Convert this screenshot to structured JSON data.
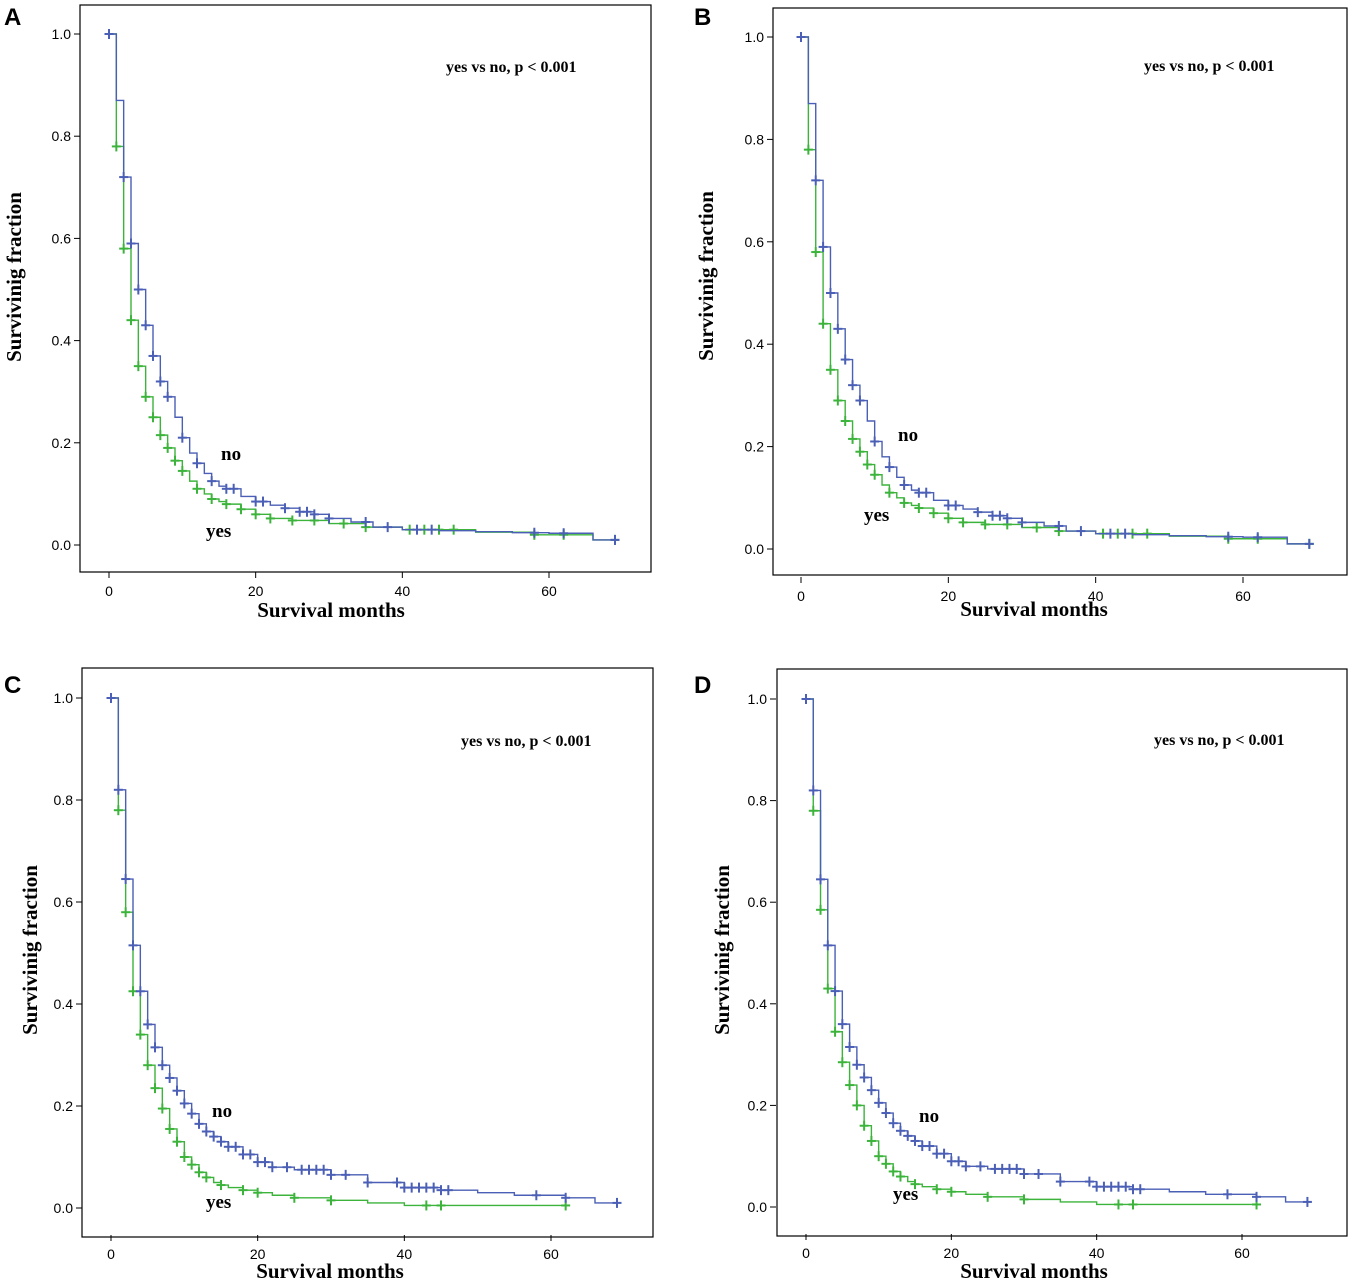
{
  "colors": {
    "no": "#4a5fb5",
    "yes": "#3cb43c"
  },
  "chart_data": [
    {
      "type": "line",
      "panel": "A",
      "xlabel": "Survival months",
      "ylabel": "Survivinig fraction",
      "annotation": "yes vs no, p < 0.001",
      "x_ticks": [
        "0",
        "20",
        "40",
        "60"
      ],
      "y_ticks": [
        "0.0",
        "0.2",
        "0.4",
        "0.6",
        "0.8",
        "1.0"
      ],
      "xlim": [
        -4,
        74
      ],
      "ylim": [
        -0.05,
        1.06
      ],
      "series": [
        {
          "name": "no",
          "label": "no",
          "x": [
            0,
            1,
            2,
            3,
            4,
            5,
            6,
            7,
            8,
            9,
            10,
            11,
            12,
            13,
            14,
            15,
            16,
            18,
            20,
            22,
            24,
            26,
            28,
            30,
            33,
            36,
            40,
            45,
            50,
            55,
            60,
            66
          ],
          "y": [
            1.0,
            0.87,
            0.72,
            0.59,
            0.5,
            0.43,
            0.37,
            0.32,
            0.29,
            0.25,
            0.21,
            0.18,
            0.16,
            0.14,
            0.125,
            0.115,
            0.11,
            0.095,
            0.085,
            0.078,
            0.072,
            0.065,
            0.06,
            0.052,
            0.045,
            0.035,
            0.03,
            0.028,
            0.026,
            0.024,
            0.023,
            0.01
          ],
          "censor_x": [
            0,
            2,
            3,
            4,
            5,
            6,
            7,
            8,
            10,
            12,
            14,
            16,
            17,
            20,
            21,
            24,
            26,
            27,
            28,
            30,
            35,
            38,
            42,
            44,
            58,
            62,
            69
          ]
        },
        {
          "name": "yes",
          "label": "yes",
          "x": [
            0,
            1,
            2,
            3,
            4,
            5,
            6,
            7,
            8,
            9,
            10,
            11,
            12,
            13,
            14,
            15,
            16,
            18,
            20,
            22,
            25,
            30,
            35,
            40,
            50,
            58,
            66
          ],
          "y": [
            1.0,
            0.78,
            0.58,
            0.44,
            0.35,
            0.29,
            0.25,
            0.215,
            0.19,
            0.165,
            0.145,
            0.125,
            0.11,
            0.1,
            0.09,
            0.085,
            0.08,
            0.07,
            0.06,
            0.052,
            0.048,
            0.042,
            0.035,
            0.03,
            0.025,
            0.02,
            0.01
          ],
          "censor_x": [
            0,
            1,
            2,
            3,
            4,
            5,
            6,
            7,
            8,
            9,
            10,
            12,
            14,
            16,
            18,
            20,
            22,
            25,
            28,
            32,
            35,
            41,
            43,
            45,
            47,
            58,
            62,
            69
          ]
        }
      ]
    },
    {
      "type": "line",
      "panel": "B",
      "xlabel": "Survival months",
      "ylabel": "Survivinig fraction",
      "annotation": "yes vs no, p < 0.001",
      "x_ticks": [
        "0",
        "20",
        "40",
        "60"
      ],
      "y_ticks": [
        "0.0",
        "0.2",
        "0.4",
        "0.6",
        "0.8",
        "1.0"
      ],
      "xlim": [
        -4,
        74
      ],
      "ylim": [
        -0.05,
        1.06
      ],
      "series": [
        {
          "name": "no",
          "label": "no",
          "x": [
            0,
            1,
            2,
            3,
            4,
            5,
            6,
            7,
            8,
            9,
            10,
            11,
            12,
            13,
            14,
            15,
            16,
            18,
            20,
            22,
            24,
            26,
            28,
            30,
            33,
            36,
            40,
            45,
            50,
            55,
            60,
            66
          ],
          "y": [
            1.0,
            0.87,
            0.72,
            0.59,
            0.5,
            0.43,
            0.37,
            0.32,
            0.29,
            0.25,
            0.21,
            0.18,
            0.16,
            0.14,
            0.125,
            0.115,
            0.11,
            0.095,
            0.085,
            0.078,
            0.072,
            0.065,
            0.06,
            0.052,
            0.045,
            0.035,
            0.03,
            0.028,
            0.026,
            0.024,
            0.023,
            0.01
          ],
          "censor_x": [
            0,
            2,
            3,
            4,
            5,
            6,
            7,
            8,
            10,
            12,
            14,
            16,
            17,
            20,
            21,
            24,
            26,
            27,
            28,
            30,
            35,
            38,
            42,
            44,
            58,
            62,
            69
          ]
        },
        {
          "name": "yes",
          "label": "yes",
          "x": [
            0,
            1,
            2,
            3,
            4,
            5,
            6,
            7,
            8,
            9,
            10,
            11,
            12,
            13,
            14,
            15,
            16,
            18,
            20,
            22,
            25,
            30,
            35,
            40,
            50,
            58,
            66
          ],
          "y": [
            1.0,
            0.78,
            0.58,
            0.44,
            0.35,
            0.29,
            0.25,
            0.215,
            0.19,
            0.165,
            0.145,
            0.125,
            0.11,
            0.1,
            0.09,
            0.085,
            0.08,
            0.07,
            0.06,
            0.052,
            0.048,
            0.042,
            0.035,
            0.03,
            0.025,
            0.02,
            0.01
          ],
          "censor_x": [
            0,
            1,
            2,
            3,
            4,
            5,
            6,
            7,
            8,
            9,
            10,
            12,
            14,
            16,
            18,
            20,
            22,
            25,
            28,
            32,
            35,
            41,
            43,
            45,
            47,
            58,
            62,
            69
          ]
        }
      ]
    },
    {
      "type": "line",
      "panel": "C",
      "xlabel": "Survival months",
      "ylabel": "Survivinig fraction",
      "annotation": "yes vs no, p < 0.001",
      "x_ticks": [
        "0",
        "20",
        "40",
        "60"
      ],
      "y_ticks": [
        "0.0",
        "0.2",
        "0.4",
        "0.6",
        "0.8",
        "1.0"
      ],
      "xlim": [
        -4,
        74
      ],
      "ylim": [
        -0.05,
        1.06
      ],
      "series": [
        {
          "name": "no",
          "label": "no",
          "x": [
            0,
            1,
            2,
            3,
            4,
            5,
            6,
            7,
            8,
            9,
            10,
            11,
            12,
            13,
            14,
            15,
            16,
            18,
            20,
            22,
            25,
            30,
            35,
            40,
            45,
            50,
            55,
            62,
            66
          ],
          "y": [
            1.0,
            0.82,
            0.645,
            0.515,
            0.425,
            0.36,
            0.315,
            0.28,
            0.255,
            0.23,
            0.205,
            0.185,
            0.165,
            0.15,
            0.14,
            0.13,
            0.12,
            0.105,
            0.09,
            0.08,
            0.075,
            0.065,
            0.05,
            0.04,
            0.035,
            0.03,
            0.025,
            0.02,
            0.01
          ],
          "censor_x": [
            0,
            1,
            2,
            3,
            4,
            5,
            6,
            7,
            8,
            9,
            10,
            11,
            12,
            13,
            14,
            15,
            16,
            17,
            18,
            19,
            20,
            21,
            22,
            24,
            26,
            27,
            28,
            29,
            30,
            32,
            35,
            39,
            40,
            41,
            42,
            43,
            44,
            45,
            46,
            58,
            62,
            69
          ]
        },
        {
          "name": "yes",
          "label": "yes",
          "x": [
            0,
            1,
            2,
            3,
            4,
            5,
            6,
            7,
            8,
            9,
            10,
            11,
            12,
            13,
            14,
            15,
            16,
            18,
            20,
            22,
            25,
            30,
            35,
            40,
            45,
            62
          ],
          "y": [
            1.0,
            0.78,
            0.58,
            0.425,
            0.34,
            0.28,
            0.235,
            0.195,
            0.155,
            0.13,
            0.1,
            0.085,
            0.07,
            0.06,
            0.05,
            0.045,
            0.04,
            0.035,
            0.03,
            0.025,
            0.02,
            0.015,
            0.01,
            0.005,
            0.005,
            0.005
          ],
          "censor_x": [
            0,
            1,
            2,
            3,
            4,
            5,
            6,
            7,
            8,
            9,
            10,
            11,
            12,
            13,
            15,
            18,
            20,
            25,
            30,
            43,
            45,
            62
          ]
        }
      ]
    },
    {
      "type": "line",
      "panel": "D",
      "xlabel": "Survival months",
      "ylabel": "Survivinig fraction",
      "annotation": "yes vs no, p < 0.001",
      "x_ticks": [
        "0",
        "20",
        "40",
        "60"
      ],
      "y_ticks": [
        "0.0",
        "0.2",
        "0.4",
        "0.6",
        "0.8",
        "1.0"
      ],
      "xlim": [
        -4,
        74
      ],
      "ylim": [
        -0.05,
        1.06
      ],
      "series": [
        {
          "name": "no",
          "label": "no",
          "x": [
            0,
            1,
            2,
            3,
            4,
            5,
            6,
            7,
            8,
            9,
            10,
            11,
            12,
            13,
            14,
            15,
            16,
            18,
            20,
            22,
            25,
            30,
            35,
            40,
            45,
            50,
            55,
            62,
            66
          ],
          "y": [
            1.0,
            0.82,
            0.645,
            0.515,
            0.425,
            0.36,
            0.315,
            0.28,
            0.255,
            0.23,
            0.205,
            0.185,
            0.165,
            0.15,
            0.14,
            0.13,
            0.12,
            0.105,
            0.09,
            0.08,
            0.075,
            0.065,
            0.05,
            0.04,
            0.035,
            0.03,
            0.025,
            0.02,
            0.01
          ],
          "censor_x": [
            0,
            1,
            2,
            3,
            4,
            5,
            6,
            7,
            8,
            9,
            10,
            11,
            12,
            13,
            14,
            15,
            16,
            17,
            18,
            19,
            20,
            21,
            22,
            24,
            26,
            27,
            28,
            29,
            30,
            32,
            35,
            39,
            40,
            41,
            42,
            43,
            44,
            45,
            46,
            58,
            62,
            69
          ]
        },
        {
          "name": "yes",
          "label": "yes",
          "x": [
            0,
            1,
            2,
            3,
            4,
            5,
            6,
            7,
            8,
            9,
            10,
            11,
            12,
            13,
            14,
            15,
            16,
            18,
            20,
            22,
            25,
            30,
            35,
            40,
            45,
            62
          ],
          "y": [
            1.0,
            0.78,
            0.585,
            0.43,
            0.345,
            0.285,
            0.24,
            0.2,
            0.16,
            0.13,
            0.1,
            0.085,
            0.07,
            0.06,
            0.05,
            0.045,
            0.04,
            0.035,
            0.03,
            0.025,
            0.02,
            0.015,
            0.01,
            0.005,
            0.005,
            0.005
          ],
          "censor_x": [
            0,
            1,
            2,
            3,
            4,
            5,
            6,
            7,
            8,
            9,
            10,
            11,
            12,
            13,
            15,
            18,
            20,
            25,
            30,
            43,
            45,
            62
          ]
        }
      ]
    }
  ]
}
